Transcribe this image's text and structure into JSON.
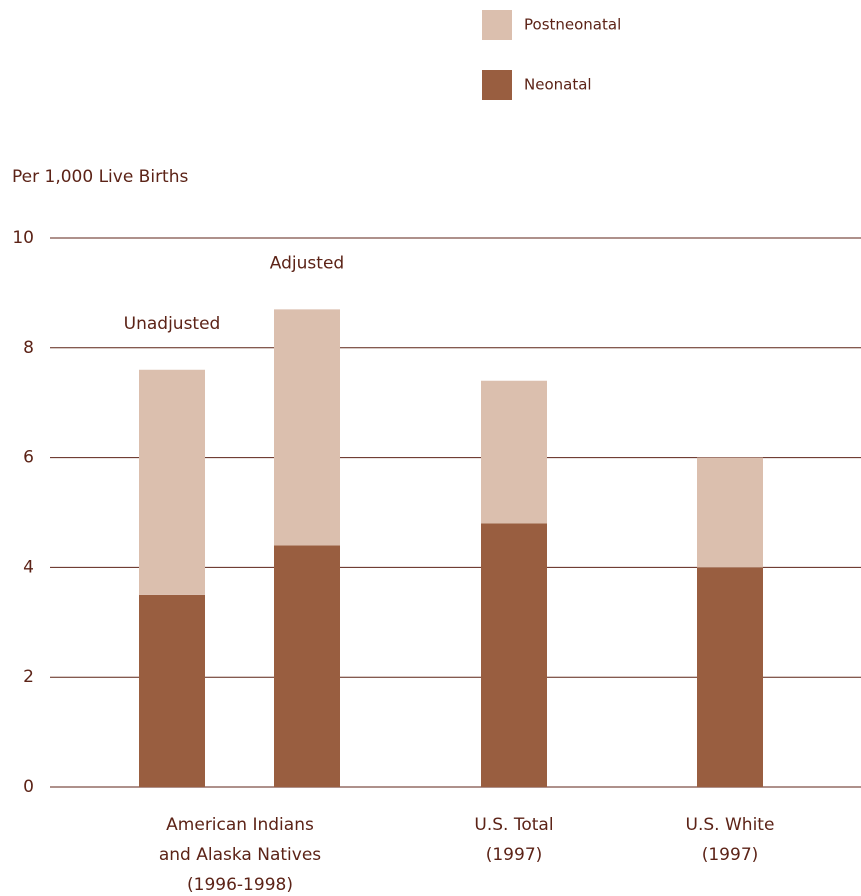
{
  "chart_data": {
    "type": "stacked_bar",
    "y_axis_label": "Per 1,000 Live Births",
    "categories": [
      "Unadjusted",
      "Adjusted",
      null,
      null
    ],
    "group_labels": [
      [
        "American Indians",
        "and Alaska Natives",
        "(1996-1998)"
      ],
      [
        "U.S. Total",
        "(1997)"
      ],
      [
        "U.S. White",
        "(1997)"
      ]
    ],
    "series": [
      {
        "name": "Neonatal",
        "color": "#995e40",
        "values": [
          3.5,
          4.4,
          4.8,
          4.0
        ]
      },
      {
        "name": "Postneonatal",
        "color": "#dbbfae",
        "values": [
          4.1,
          4.3,
          2.6,
          2.0
        ]
      }
    ],
    "ylim": [
      0,
      10
    ],
    "yticks": [
      0,
      2,
      4,
      6,
      8,
      10
    ],
    "grid": true
  }
}
